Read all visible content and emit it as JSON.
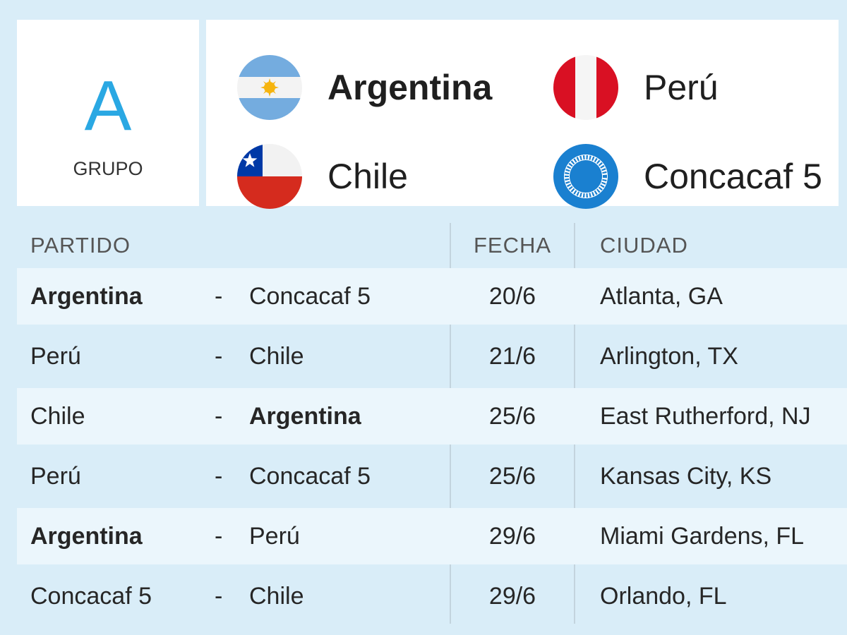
{
  "group": {
    "letter": "A",
    "label": "GRUPO"
  },
  "teams": [
    {
      "name": "Argentina",
      "flag": "argentina-flag-icon",
      "bold": true
    },
    {
      "name": "Perú",
      "flag": "peru-flag-icon",
      "bold": false
    },
    {
      "name": "Chile",
      "flag": "chile-flag-icon",
      "bold": false
    },
    {
      "name": "Concacaf 5",
      "flag": "concacaf-logo-icon",
      "bold": false
    }
  ],
  "table": {
    "headers": {
      "match": "PARTIDO",
      "date": "FECHA",
      "city": "CIUDAD"
    },
    "rows": [
      {
        "home": "Argentina",
        "sep": "-",
        "away": "Concacaf 5",
        "date": "20/6",
        "city": "Atlanta, GA",
        "home_bold": true,
        "away_bold": false
      },
      {
        "home": "Perú",
        "sep": "-",
        "away": "Chile",
        "date": "21/6",
        "city": "Arlington, TX",
        "home_bold": false,
        "away_bold": false
      },
      {
        "home": "Chile",
        "sep": "-",
        "away": "Argentina",
        "date": "25/6",
        "city": "East Rutherford, NJ",
        "home_bold": false,
        "away_bold": true
      },
      {
        "home": "Perú",
        "sep": "-",
        "away": "Concacaf 5",
        "date": "25/6",
        "city": "Kansas City, KS",
        "home_bold": false,
        "away_bold": false
      },
      {
        "home": "Argentina",
        "sep": "-",
        "away": "Perú",
        "date": "29/6",
        "city": "Miami Gardens, FL",
        "home_bold": true,
        "away_bold": false
      },
      {
        "home": "Concacaf 5",
        "sep": "-",
        "away": "Chile",
        "date": "29/6",
        "city": "Orlando, FL",
        "home_bold": false,
        "away_bold": false
      }
    ]
  },
  "colors": {
    "background": "#d9edf8",
    "accent": "#2aa8e3",
    "row_shade": "#ebf6fc",
    "argentina_blue": "#74acdf",
    "argentina_sun": "#f6b40e",
    "peru_red": "#d91023",
    "chile_blue": "#0039a6",
    "chile_red": "#d52b1e",
    "concacaf_blue": "#1a80d0"
  }
}
